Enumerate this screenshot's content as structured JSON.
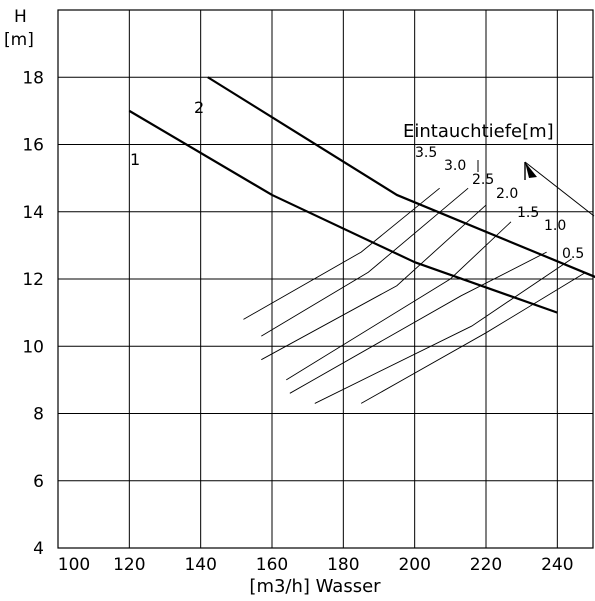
{
  "chart_data": {
    "type": "line",
    "xlabel": "[m3/h] Wasser",
    "ylabel_top": "H",
    "ylabel_unit": "[m]",
    "xlim": [
      100,
      250
    ],
    "ylim": [
      4,
      20
    ],
    "x_ticks": [
      "100",
      "120",
      "140",
      "160",
      "180",
      "200",
      "220",
      "240"
    ],
    "y_ticks": [
      "4",
      "6",
      "8",
      "10",
      "12",
      "14",
      "16",
      "18"
    ],
    "grid": true,
    "series": [
      {
        "name": "1",
        "points": [
          [
            120,
            17.0
          ],
          [
            160,
            14.5
          ],
          [
            200,
            12.5
          ],
          [
            240,
            11.0
          ]
        ]
      },
      {
        "name": "2",
        "points": [
          [
            142,
            18.0
          ],
          [
            195,
            14.5
          ],
          [
            252,
            12.0
          ]
        ]
      }
    ],
    "depth_legend_title": "Eintauchtiefe[m]",
    "depth_lines": [
      {
        "label": "3.5",
        "points": [
          [
            152,
            10.8
          ],
          [
            185,
            12.8
          ],
          [
            207,
            14.7
          ]
        ]
      },
      {
        "label": "3.0",
        "points": [
          [
            157,
            10.3
          ],
          [
            187,
            12.2
          ],
          [
            215,
            14.7
          ]
        ]
      },
      {
        "label": "2.5",
        "points": [
          [
            157,
            9.6
          ],
          [
            195,
            11.8
          ],
          [
            220,
            14.2
          ]
        ]
      },
      {
        "label": "2.0",
        "points": [
          [
            164,
            9.0
          ],
          [
            210,
            12.0
          ],
          [
            227,
            13.7
          ]
        ]
      },
      {
        "label": "1.5",
        "points": [
          [
            165,
            8.6
          ],
          [
            213,
            11.5
          ],
          [
            237,
            12.8
          ]
        ]
      },
      {
        "label": "1.0",
        "points": [
          [
            172,
            8.3
          ],
          [
            216,
            10.6
          ],
          [
            244,
            12.6
          ]
        ]
      },
      {
        "label": "0.5",
        "points": [
          [
            185,
            8.3
          ],
          [
            220,
            10.4
          ],
          [
            248,
            12.2
          ]
        ]
      }
    ]
  }
}
